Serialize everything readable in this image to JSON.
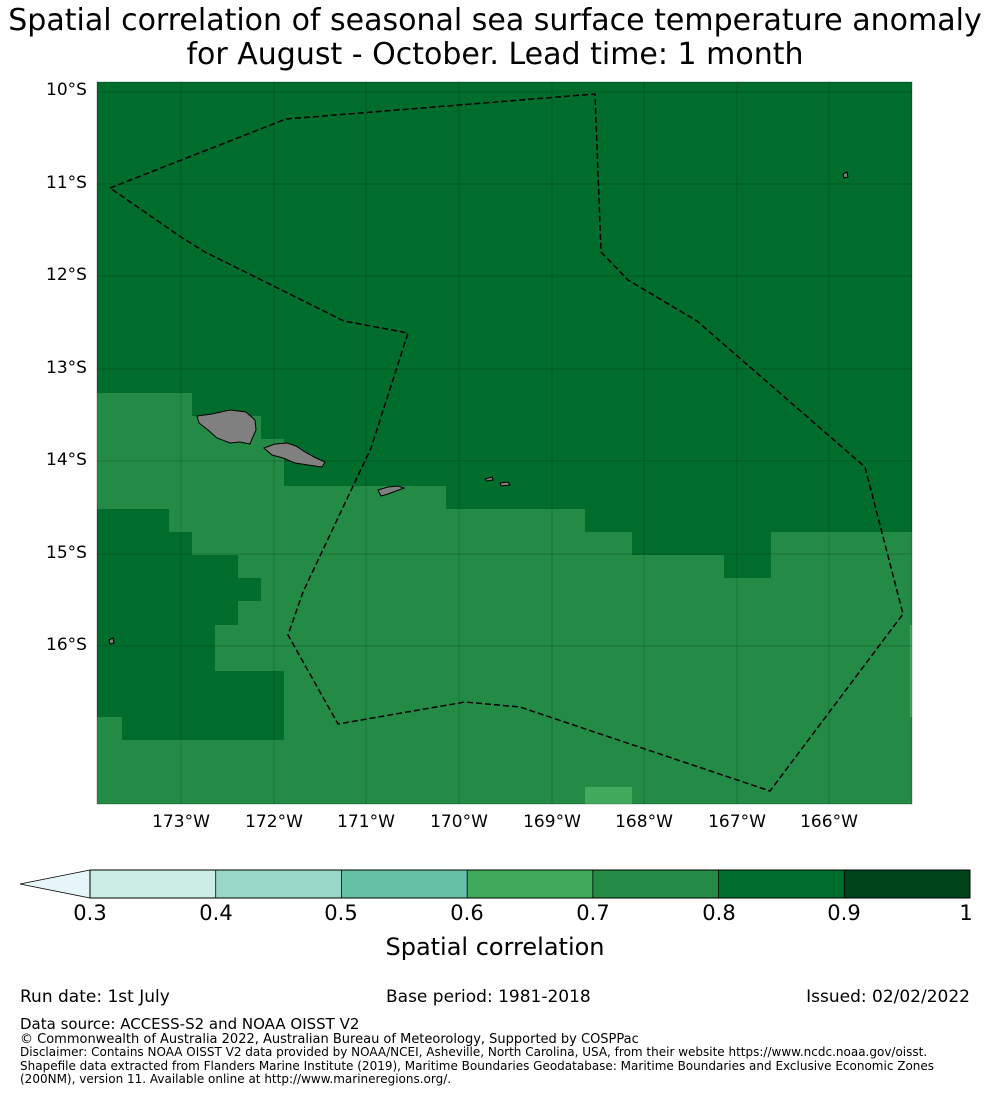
{
  "title": {
    "line1": "Spatial correlation of seasonal sea surface temperature anomaly",
    "line2": "for August - October. Lead time: 1 month"
  },
  "map": {
    "lat_ticks": [
      "10°S",
      "11°S",
      "12°S",
      "13°S",
      "14°S",
      "15°S",
      "16°S"
    ],
    "lon_ticks": [
      "173°W",
      "172°W",
      "171°W",
      "170°W",
      "169°W",
      "168°W",
      "167°W",
      "166°W"
    ],
    "extent": {
      "lon_min": -173.9,
      "lon_max": -165.1,
      "lat_min": -17.8,
      "lat_max": -10.0
    },
    "land_color": "#808080",
    "boundary_style": "dashed black",
    "cell_colors": {
      "0.8-0.9": "#006d2c",
      "0.7-0.8": "#238b45",
      "0.6-0.7": "#41ab5d"
    }
  },
  "colorbar": {
    "label": "Spatial correlation",
    "ticks": [
      "0.3",
      "0.4",
      "0.5",
      "0.6",
      "0.7",
      "0.8",
      "0.9",
      "1"
    ],
    "extend": "min",
    "colors": [
      "#e5f5f9",
      "#ccece6",
      "#99d8c9",
      "#66c2a4",
      "#41ab5d",
      "#238b45",
      "#006d2c",
      "#00441b"
    ]
  },
  "footer": {
    "run_date": "Run date: 1st July",
    "base_period": "Base period: 1981-2018",
    "issued": "Issued: 02/02/2022",
    "data_source": "Data source: ACCESS-S2 and NOAA OISST V2",
    "copyright": "© Commonwealth of Australia 2022, Australian Bureau of Meteorology, Supported by COSPPac",
    "disclaimer": "Disclaimer: Contains NOAA OISST V2 data provided by NOAA/NCEI, Asheville, North Carolina, USA, from their website https://www.ncdc.noaa.gov/oisst. Shapefile data extracted from Flanders Marine Institute (2019), Maritime Boundaries Geodatabase: Maritime Boundaries and Exclusive Economic Zones (200NM), version 11. Available online at http://www.marineregions.org/."
  }
}
